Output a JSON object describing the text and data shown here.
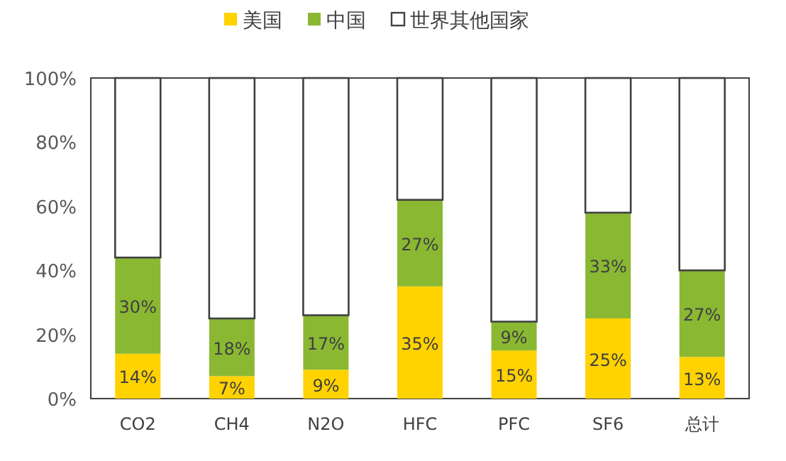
{
  "chart_data": {
    "type": "bar",
    "stacked": true,
    "categories": [
      "CO2",
      "CH4",
      "N2O",
      "HFC",
      "PFC",
      "SF6",
      "总计"
    ],
    "series": [
      {
        "name": "美国",
        "color": "#ffd200",
        "values": [
          14,
          7,
          9,
          35,
          15,
          25,
          13
        ],
        "value_labels": [
          "14%",
          "7%",
          "9%",
          "35%",
          "15%",
          "25%",
          "13%"
        ]
      },
      {
        "name": "中国",
        "color": "#8ab833",
        "values": [
          30,
          18,
          17,
          27,
          9,
          33,
          27
        ],
        "value_labels": [
          "30%",
          "18%",
          "17%",
          "27%",
          "9%",
          "33%",
          "27%"
        ]
      },
      {
        "name": "世界其他国家",
        "color": "#ffffff",
        "values": [
          56,
          75,
          74,
          38,
          76,
          42,
          60
        ]
      }
    ],
    "ylim": [
      0,
      100
    ],
    "yticks": [
      {
        "value": 0,
        "label": "0%"
      },
      {
        "value": 20,
        "label": "20%"
      },
      {
        "value": 40,
        "label": "40%"
      },
      {
        "value": 60,
        "label": "60%"
      },
      {
        "value": 80,
        "label": "80%"
      },
      {
        "value": 100,
        "label": "100%"
      }
    ],
    "grid": false,
    "legend": "top"
  }
}
